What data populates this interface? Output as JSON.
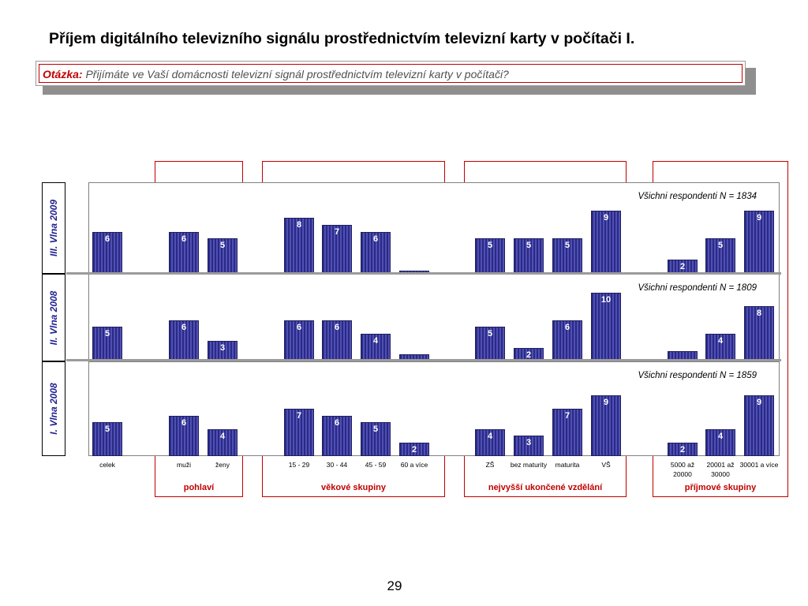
{
  "title": "Příjem digitálního televizního signálu prostřednictvím televizní karty v počítači I.",
  "question": {
    "label": "Otázka:",
    "text": " Přijímáte ve Vaší domácnosti televizní signál prostřednictvím televizní karty v počítači?"
  },
  "groups": [
    "pohlaví",
    "věkové skupiny",
    "nejvyšší ukončené vzdělání",
    "příjmové skupiny"
  ],
  "page_number": "29",
  "chart_data": {
    "type": "bar",
    "categories": [
      "celek",
      "muži",
      "ženy",
      "15 - 29",
      "30 - 44",
      "45 - 59",
      "60 a více",
      "ZŠ",
      "bez maturity",
      "maturita",
      "VŠ",
      "5000 až 20000",
      "20001 až 30000",
      "30001 a více"
    ],
    "ylim": [
      0,
      10
    ],
    "colors": {
      "bar": "#2a2a86",
      "stripe": "#5050b4",
      "accent": "#c00000",
      "row_label": "#1f1f8f"
    },
    "panels": [
      {
        "row_label": "III. Vlna 2009",
        "note": "Všichni respondenti N = 1834",
        "values": [
          6,
          6,
          5,
          8,
          7,
          6,
          0.5,
          5,
          5,
          5,
          9,
          2,
          5,
          9
        ],
        "labels": [
          "6",
          "6",
          "5",
          "8",
          "7",
          "6",
          "",
          "5",
          "5",
          "5",
          "9",
          "2",
          "5",
          "9"
        ]
      },
      {
        "row_label": "II. Vlna 2008",
        "note": "Všichni respondenti N = 1809",
        "values": [
          5,
          6,
          3,
          6,
          6,
          4,
          1,
          5,
          2,
          6,
          10,
          1.5,
          4,
          8
        ],
        "labels": [
          "5",
          "6",
          "3",
          "6",
          "6",
          "4",
          "",
          "5",
          "2",
          "6",
          "10",
          "",
          "4",
          "8"
        ]
      },
      {
        "row_label": "I. Vlna 2008",
        "note": "Všichni respondenti N = 1859",
        "values": [
          5,
          6,
          4,
          7,
          6,
          5,
          2,
          4,
          3,
          7,
          9,
          2,
          4,
          9
        ],
        "labels": [
          "5",
          "6",
          "4",
          "7",
          "6",
          "5",
          "2",
          "4",
          "3",
          "7",
          "9",
          "2",
          "4",
          "9"
        ]
      }
    ]
  }
}
